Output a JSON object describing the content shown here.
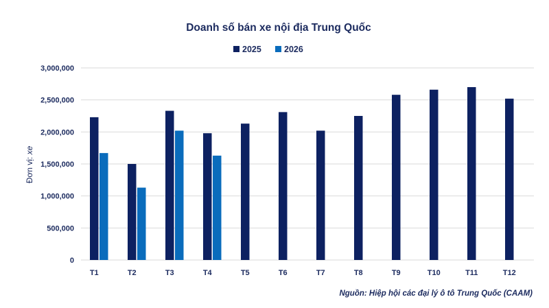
{
  "chart_data": {
    "type": "bar",
    "title": "Doanh số bán xe nội địa Trung Quốc",
    "ylabel_prefix": "Đơn vị: ",
    "ylabel_unit": "xe",
    "xlabel": "",
    "categories": [
      "T1",
      "T2",
      "T3",
      "T4",
      "T5",
      "T6",
      "T7",
      "T8",
      "T9",
      "T10",
      "T11",
      "T12"
    ],
    "series": [
      {
        "name": "2025",
        "color": "#0d2161",
        "values": [
          2230000,
          1500000,
          2330000,
          1980000,
          2130000,
          2310000,
          2020000,
          2250000,
          2580000,
          2660000,
          2700000,
          2520000
        ]
      },
      {
        "name": "2026",
        "color": "#0a6cbc",
        "values": [
          1670000,
          1130000,
          2020000,
          1630000,
          null,
          null,
          null,
          null,
          null,
          null,
          null,
          null
        ]
      }
    ],
    "ylim": [
      0,
      3000000
    ],
    "yticks": [
      0,
      500000,
      1000000,
      1500000,
      2000000,
      2500000,
      3000000
    ],
    "ytick_labels": [
      "0",
      "500,000",
      "1,000,000",
      "1,500,000",
      "2,000,000",
      "2,500,000",
      "3,000,000"
    ],
    "grid": true,
    "legend_position": "top-center",
    "source_note": "Nguồn: Hiệp hội các đại lý ô tô Trung Quốc (CAAM)"
  }
}
